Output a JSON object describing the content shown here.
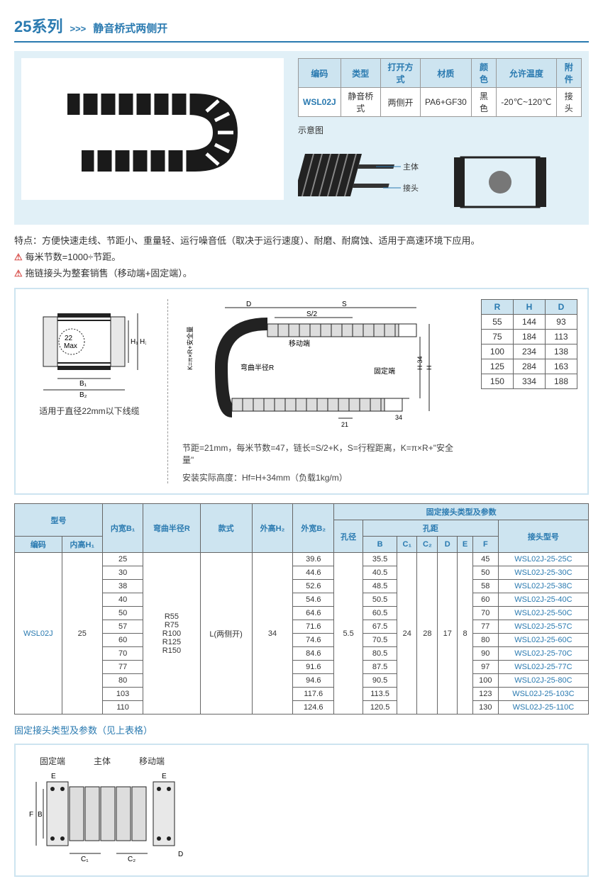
{
  "header": {
    "series": "25系列",
    "arrows": ">>>",
    "subtitle": "静音桥式两侧开"
  },
  "spec": {
    "headers": [
      "编码",
      "类型",
      "打开方式",
      "材质",
      "颜色",
      "允许温度",
      "附件"
    ],
    "row": [
      "WSL02J",
      "静音桥式",
      "两侧开",
      "PA6+GF30",
      "黑色",
      "-20℃~120℃",
      "接头"
    ]
  },
  "schematic": {
    "label": "示意图",
    "body": "主体",
    "connector": "接头"
  },
  "notes": {
    "feat": "特点：方便快速走线、节距小、重量轻、运行噪音低（取决于运行速度）、耐磨、耐腐蚀、适用于高速环境下应用。",
    "w1": "每米节数=1000÷节距。",
    "w2": "拖链接头为整套销售（移动端+固定端）。"
  },
  "dim_caption": "适用于直径22mm以下线缆",
  "dim_max": "22\nMax",
  "dim_labels": {
    "B1": "B₁",
    "B2": "B₂",
    "H1": "H₁",
    "H2": "H₂",
    "D": "D",
    "S": "S",
    "S2": "S/2",
    "K": "K=π×R+安全量",
    "bendR": "弯曲半径R",
    "move": "移动端",
    "fix": "固定端",
    "H": "H",
    "HF": "Hf=H+34",
    "n34": "34",
    "n21": "21",
    "H34": "H-34"
  },
  "rhd": {
    "headers": [
      "R",
      "H",
      "D"
    ],
    "rows": [
      [
        "55",
        "144",
        "93"
      ],
      [
        "75",
        "184",
        "113"
      ],
      [
        "100",
        "234",
        "138"
      ],
      [
        "125",
        "284",
        "163"
      ],
      [
        "150",
        "334",
        "188"
      ]
    ]
  },
  "dim_note1": "节距=21mm，每米节数=47，链长=S/2+K，S=行程距离，K=π×R+\"安全量\"",
  "dim_note2": "安装实际高度：Hf=H+34mm（负载1kg/m）",
  "main": {
    "h1": [
      "型号",
      "内宽B₁",
      "弯曲半径R",
      "款式",
      "外高H₂",
      "外宽B₂",
      "固定接头类型及参数"
    ],
    "h2_left": [
      "编码",
      "内高H₁"
    ],
    "h2_kd": "孔径",
    "h2_kj": "孔距",
    "h2_jh": "接头型号",
    "h3_kj": [
      "B",
      "C₁",
      "C₂",
      "D",
      "E",
      "F"
    ],
    "code": "WSL02J",
    "h1v": "25",
    "radii": "R55\nR75\nR100\nR125\nR150",
    "style": "L(两侧开)",
    "h2v": "34",
    "kd": "5.5",
    "c1": "24",
    "c2": "28",
    "d": "17",
    "e": "8",
    "rows": [
      {
        "b1": "25",
        "b2": "39.6",
        "b": "35.5",
        "f": "45",
        "pn": "WSL02J-25-25C"
      },
      {
        "b1": "30",
        "b2": "44.6",
        "b": "40.5",
        "f": "50",
        "pn": "WSL02J-25-30C"
      },
      {
        "b1": "38",
        "b2": "52.6",
        "b": "48.5",
        "f": "58",
        "pn": "WSL02J-25-38C"
      },
      {
        "b1": "40",
        "b2": "54.6",
        "b": "50.5",
        "f": "60",
        "pn": "WSL02J-25-40C"
      },
      {
        "b1": "50",
        "b2": "64.6",
        "b": "60.5",
        "f": "70",
        "pn": "WSL02J-25-50C"
      },
      {
        "b1": "57",
        "b2": "71.6",
        "b": "67.5",
        "f": "77",
        "pn": "WSL02J-25-57C"
      },
      {
        "b1": "60",
        "b2": "74.6",
        "b": "70.5",
        "f": "80",
        "pn": "WSL02J-25-60C"
      },
      {
        "b1": "70",
        "b2": "84.6",
        "b": "80.5",
        "f": "90",
        "pn": "WSL02J-25-70C"
      },
      {
        "b1": "77",
        "b2": "91.6",
        "b": "87.5",
        "f": "97",
        "pn": "WSL02J-25-77C"
      },
      {
        "b1": "80",
        "b2": "94.6",
        "b": "90.5",
        "f": "100",
        "pn": "WSL02J-25-80C"
      },
      {
        "b1": "103",
        "b2": "117.6",
        "b": "113.5",
        "f": "123",
        "pn": "WSL02J-25-103C"
      },
      {
        "b1": "110",
        "b2": "124.6",
        "b": "120.5",
        "f": "130",
        "pn": "WSL02J-25-110C"
      }
    ]
  },
  "foot_note": "固定接头类型及参数（见上表格）",
  "bot_labels": {
    "fix": "固定端",
    "body": "主体",
    "move": "移动端",
    "E": "E",
    "F": "F",
    "B": "B",
    "C1": "C₁",
    "C2": "C₂",
    "D": "D"
  }
}
